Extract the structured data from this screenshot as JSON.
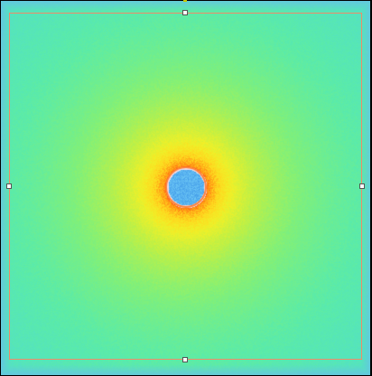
{
  "heatmap": {
    "background_color": "#3fe4b0",
    "hotspot_colors": [
      "#40e0c0",
      "#7cf08a",
      "#c6f04c",
      "#f0f030",
      "#ffd020",
      "#ff9a10",
      "#ff5010",
      "#58b8f0"
    ],
    "spot_fill": "#58b0f0",
    "spot_ring": "#ff4a1a"
  },
  "selection": {
    "border_color": "#f08a6a"
  }
}
